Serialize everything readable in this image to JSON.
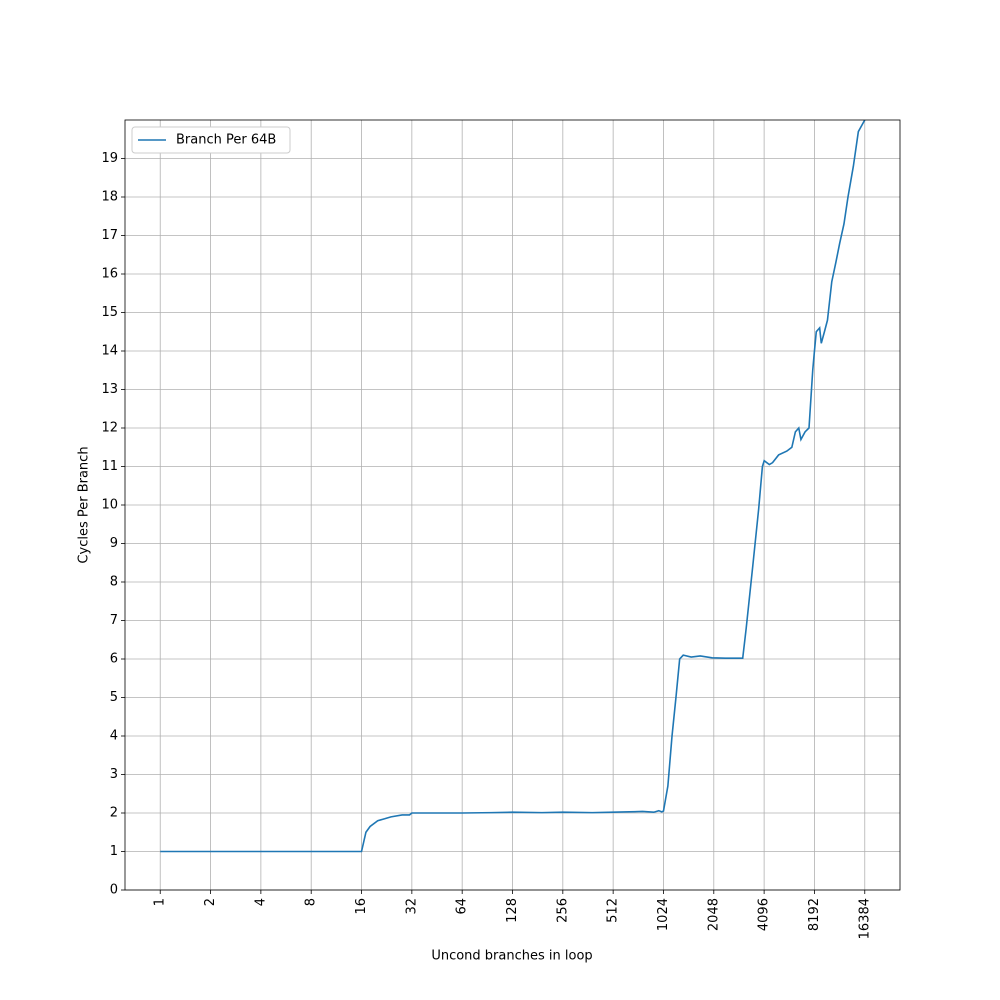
{
  "chart_data": {
    "type": "line",
    "xlabel": "Uncond branches in loop",
    "ylabel": "Cycles Per Branch",
    "xscale": "log2",
    "grid": true,
    "legend": "upper left",
    "xlim": [
      0.6156,
      26616
    ],
    "ylim": [
      0,
      20
    ],
    "xticks": [
      1,
      2,
      4,
      8,
      16,
      32,
      64,
      128,
      256,
      512,
      1024,
      2048,
      4096,
      8192,
      16384
    ],
    "yticks": [
      0,
      1,
      2,
      3,
      4,
      5,
      6,
      7,
      8,
      9,
      10,
      11,
      12,
      13,
      14,
      15,
      16,
      17,
      18,
      19
    ],
    "series": [
      {
        "name": "Branch Per 64B",
        "color": "#1f77b4",
        "x": [
          1,
          2,
          4,
          8,
          16,
          17,
          18,
          20,
          22,
          24,
          28,
          31,
          32,
          48,
          64,
          96,
          128,
          192,
          256,
          384,
          512,
          640,
          768,
          896,
          960,
          1000,
          1024,
          1088,
          1152,
          1216,
          1280,
          1344,
          1500,
          1700,
          2000,
          2400,
          2800,
          3050,
          3200,
          3500,
          3800,
          4000,
          4100,
          4400,
          4600,
          5000,
          5600,
          6000,
          6300,
          6600,
          6800,
          7200,
          7600,
          8000,
          8192,
          8400,
          8800,
          9000,
          9400,
          9800,
          10400,
          11000,
          11600,
          12300,
          13000,
          14000,
          15000,
          16384
        ],
        "values": [
          1,
          1,
          1,
          1,
          1,
          1.5,
          1.65,
          1.8,
          1.85,
          1.9,
          1.95,
          1.95,
          2.0,
          2.0,
          2.0,
          2.01,
          2.02,
          2.01,
          2.02,
          2.01,
          2.02,
          2.03,
          2.04,
          2.02,
          2.06,
          2.03,
          2.05,
          2.7,
          4.0,
          5.0,
          6.0,
          6.1,
          6.05,
          6.08,
          6.03,
          6.02,
          6.02,
          6.02,
          6.8,
          8.4,
          9.9,
          11.0,
          11.15,
          11.05,
          11.1,
          11.3,
          11.4,
          11.5,
          11.9,
          12.0,
          11.7,
          11.9,
          12.0,
          13.5,
          14.0,
          14.5,
          14.6,
          14.2,
          14.5,
          14.8,
          15.8,
          16.3,
          16.8,
          17.3,
          18.0,
          18.8,
          19.7,
          20.0
        ]
      }
    ]
  }
}
